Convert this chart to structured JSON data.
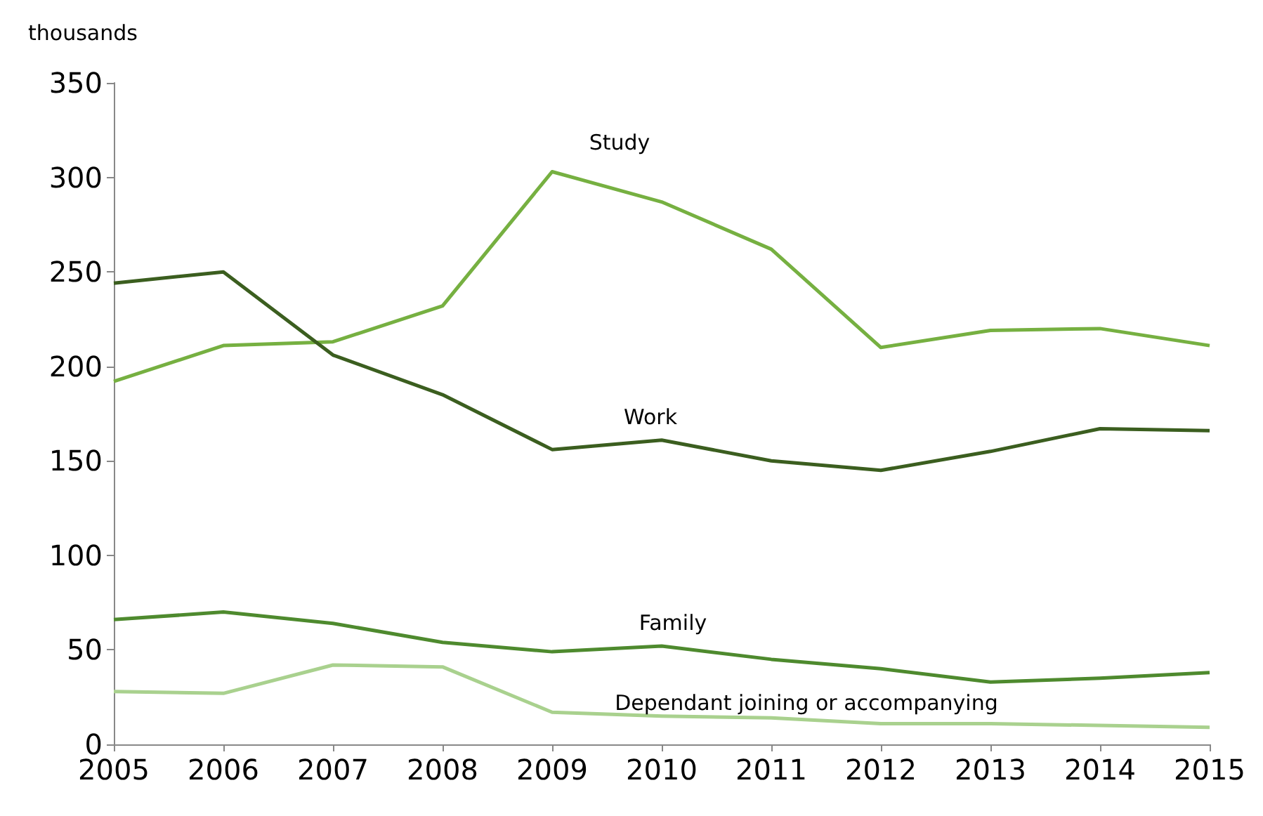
{
  "chart_data": {
    "type": "line",
    "ylabel": "thousands",
    "x": [
      2005,
      2006,
      2007,
      2008,
      2009,
      2010,
      2011,
      2012,
      2013,
      2014,
      2015
    ],
    "xlim": [
      2005,
      2015
    ],
    "xticks": [
      2005,
      2006,
      2007,
      2008,
      2009,
      2010,
      2011,
      2012,
      2013,
      2014,
      2015
    ],
    "ylim": [
      0,
      350
    ],
    "yticks": [
      0,
      50,
      100,
      150,
      200,
      250,
      300,
      350
    ],
    "grid": false,
    "legend": false,
    "marker": "none",
    "line_style": "solid",
    "series": [
      {
        "name": "Study",
        "color": "#76b041",
        "values": [
          192,
          211,
          213,
          232,
          303,
          287,
          262,
          210,
          219,
          220,
          211
        ]
      },
      {
        "name": "Work",
        "color": "#3b5e1f",
        "values": [
          244,
          250,
          206,
          185,
          156,
          161,
          150,
          145,
          155,
          167,
          166
        ]
      },
      {
        "name": "Family",
        "color": "#4e8a2e",
        "values": [
          66,
          70,
          64,
          54,
          49,
          52,
          45,
          40,
          33,
          35,
          38
        ]
      },
      {
        "name": "Dependant joining or accompanying",
        "color": "#a9d18e",
        "values": [
          28,
          27,
          42,
          41,
          17,
          15,
          14,
          11,
          11,
          10,
          9
        ]
      }
    ]
  }
}
